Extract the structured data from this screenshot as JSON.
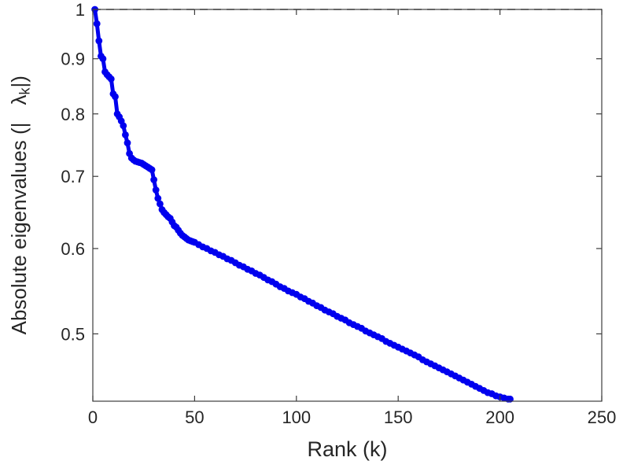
{
  "figure": {
    "background": "#ffffff"
  },
  "chart_data": {
    "type": "scatter",
    "title": "",
    "xlabel": "Rank (k)",
    "ylabel": {
      "prefix": "Absolute eigenvalues (|",
      "symbol": "λ",
      "subscript": "k",
      "suffix": "|)"
    },
    "xlim": [
      0,
      250
    ],
    "ylim": [
      0.433,
      1.0
    ],
    "yscale": "log",
    "grid": false,
    "legend": null,
    "axis_color": "#3c3c3c",
    "text_color": "#262626",
    "tick_font_size": 22,
    "xticks": {
      "values": [
        0,
        50,
        100,
        150,
        200,
        250
      ],
      "labels": [
        "0",
        "50",
        "100",
        "150",
        "200",
        "250"
      ]
    },
    "yticks": {
      "values": [
        0.5,
        0.6,
        0.7,
        0.8,
        0.9,
        1.0
      ],
      "labels": [
        "0.5",
        "0.6",
        "0.7",
        "0.8",
        "0.9",
        "1"
      ]
    },
    "reference_line": {
      "y": 1.0,
      "style": "dashed",
      "color": "#4a4a4a"
    },
    "series": [
      {
        "name": "absolute-eigenvalues",
        "color": "#0000ee",
        "marker": "circle",
        "points": [
          [
            1,
            1.0
          ],
          [
            2,
            0.97
          ],
          [
            3,
            0.935
          ],
          [
            4,
            0.905
          ],
          [
            5,
            0.9
          ],
          [
            6,
            0.875
          ],
          [
            7,
            0.87
          ],
          [
            8,
            0.866
          ],
          [
            9,
            0.862
          ],
          [
            10,
            0.835
          ],
          [
            11,
            0.83
          ],
          [
            12,
            0.8
          ],
          [
            13,
            0.795
          ],
          [
            14,
            0.788
          ],
          [
            15,
            0.78
          ],
          [
            16,
            0.765
          ],
          [
            17,
            0.752
          ],
          [
            18,
            0.735
          ],
          [
            19,
            0.728
          ],
          [
            20,
            0.725
          ],
          [
            21,
            0.723
          ],
          [
            22,
            0.722
          ],
          [
            23,
            0.721
          ],
          [
            24,
            0.72
          ],
          [
            25,
            0.718
          ],
          [
            26,
            0.716
          ],
          [
            27,
            0.714
          ],
          [
            28,
            0.712
          ],
          [
            29,
            0.71
          ],
          [
            30,
            0.695
          ],
          [
            31,
            0.68
          ],
          [
            32,
            0.668
          ],
          [
            33,
            0.66
          ],
          [
            34,
            0.652
          ],
          [
            35,
            0.648
          ],
          [
            36,
            0.645
          ],
          [
            37,
            0.642
          ],
          [
            38,
            0.64
          ],
          [
            39,
            0.635
          ],
          [
            40,
            0.63
          ],
          [
            41,
            0.628
          ],
          [
            42,
            0.624
          ],
          [
            43,
            0.62
          ],
          [
            44,
            0.617
          ],
          [
            45,
            0.615
          ],
          [
            46,
            0.613
          ],
          [
            47,
            0.611
          ],
          [
            48,
            0.61
          ],
          [
            49,
            0.609
          ],
          [
            50,
            0.608
          ],
          [
            52,
            0.605
          ],
          [
            54,
            0.602
          ],
          [
            56,
            0.6
          ],
          [
            58,
            0.597
          ],
          [
            60,
            0.595
          ],
          [
            62,
            0.592
          ],
          [
            64,
            0.59
          ],
          [
            66,
            0.587
          ],
          [
            68,
            0.585
          ],
          [
            70,
            0.582
          ],
          [
            72,
            0.579
          ],
          [
            74,
            0.577
          ],
          [
            76,
            0.574
          ],
          [
            78,
            0.572
          ],
          [
            80,
            0.569
          ],
          [
            82,
            0.567
          ],
          [
            84,
            0.564
          ],
          [
            86,
            0.561
          ],
          [
            88,
            0.559
          ],
          [
            90,
            0.556
          ],
          [
            92,
            0.553
          ],
          [
            94,
            0.551
          ],
          [
            96,
            0.548
          ],
          [
            98,
            0.546
          ],
          [
            100,
            0.544
          ],
          [
            102,
            0.541
          ],
          [
            104,
            0.539
          ],
          [
            106,
            0.536
          ],
          [
            108,
            0.534
          ],
          [
            110,
            0.531
          ],
          [
            112,
            0.529
          ],
          [
            114,
            0.526
          ],
          [
            116,
            0.524
          ],
          [
            118,
            0.522
          ],
          [
            120,
            0.519
          ],
          [
            122,
            0.517
          ],
          [
            124,
            0.515
          ],
          [
            126,
            0.512
          ],
          [
            128,
            0.51
          ],
          [
            130,
            0.508
          ],
          [
            132,
            0.506
          ],
          [
            134,
            0.503
          ],
          [
            136,
            0.501
          ],
          [
            138,
            0.499
          ],
          [
            140,
            0.497
          ],
          [
            142,
            0.495
          ],
          [
            144,
            0.492
          ],
          [
            146,
            0.49
          ],
          [
            148,
            0.488
          ],
          [
            150,
            0.486
          ],
          [
            152,
            0.484
          ],
          [
            154,
            0.482
          ],
          [
            156,
            0.48
          ],
          [
            158,
            0.478
          ],
          [
            160,
            0.476
          ],
          [
            162,
            0.473
          ],
          [
            164,
            0.471
          ],
          [
            166,
            0.469
          ],
          [
            168,
            0.467
          ],
          [
            170,
            0.465
          ],
          [
            172,
            0.463
          ],
          [
            174,
            0.461
          ],
          [
            176,
            0.459
          ],
          [
            178,
            0.457
          ],
          [
            180,
            0.455
          ],
          [
            182,
            0.453
          ],
          [
            184,
            0.451
          ],
          [
            186,
            0.449
          ],
          [
            188,
            0.447
          ],
          [
            190,
            0.445
          ],
          [
            192,
            0.443
          ],
          [
            194,
            0.441
          ],
          [
            196,
            0.44
          ],
          [
            198,
            0.438
          ],
          [
            200,
            0.437
          ],
          [
            202,
            0.436
          ],
          [
            204,
            0.435
          ],
          [
            205,
            0.435
          ]
        ]
      }
    ]
  }
}
